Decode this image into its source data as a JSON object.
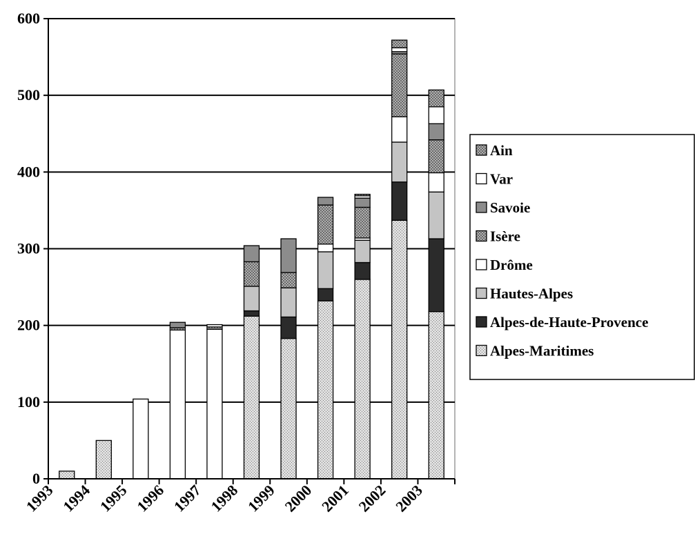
{
  "chart_data": {
    "type": "bar",
    "stacked": true,
    "title": "",
    "xlabel": "",
    "ylabel": "",
    "ylim": [
      0,
      600
    ],
    "yticks": [
      0,
      100,
      200,
      300,
      400,
      500,
      600
    ],
    "grid": "horizontal",
    "legend_position": "right",
    "categories": [
      "1993",
      "1994",
      "1995",
      "1996",
      "1997",
      "1998",
      "1999",
      "2000",
      "2001",
      "2002",
      "2003"
    ],
    "series": [
      {
        "name": "Alpes-Maritimes",
        "fill": "dots",
        "values": [
          10,
          50,
          0,
          0,
          0,
          212,
          183,
          232,
          260,
          337,
          218
        ]
      },
      {
        "name": "Alpes-de-Haute-Provence",
        "fill": "black",
        "values": [
          0,
          0,
          0,
          0,
          0,
          7,
          28,
          16,
          22,
          50,
          95
        ]
      },
      {
        "name": "Hautes-Alpes",
        "fill": "lightgray",
        "values": [
          0,
          0,
          0,
          0,
          0,
          32,
          38,
          48,
          29,
          52,
          61
        ]
      },
      {
        "name": "Drôme",
        "fill": "white",
        "values": [
          0,
          0,
          104,
          194,
          195,
          0,
          0,
          10,
          3,
          33,
          25
        ]
      },
      {
        "name": "Isère",
        "fill": "checker",
        "values": [
          0,
          0,
          0,
          3,
          3,
          32,
          20,
          51,
          40,
          82,
          43
        ]
      },
      {
        "name": "Savoie",
        "fill": "gray",
        "values": [
          0,
          0,
          0,
          7,
          0,
          21,
          44,
          10,
          12,
          3,
          21
        ]
      },
      {
        "name": "Var",
        "fill": "white",
        "values": [
          0,
          0,
          0,
          0,
          3,
          0,
          0,
          0,
          3,
          5,
          22
        ]
      },
      {
        "name": "Ain",
        "fill": "checker",
        "values": [
          0,
          0,
          0,
          0,
          0,
          0,
          0,
          0,
          2,
          10,
          22
        ]
      }
    ],
    "legend_order": [
      "Ain",
      "Var",
      "Savoie",
      "Isère",
      "Drôme",
      "Hautes-Alpes",
      "Alpes-de-Haute-Provence",
      "Alpes-Maritimes"
    ]
  }
}
